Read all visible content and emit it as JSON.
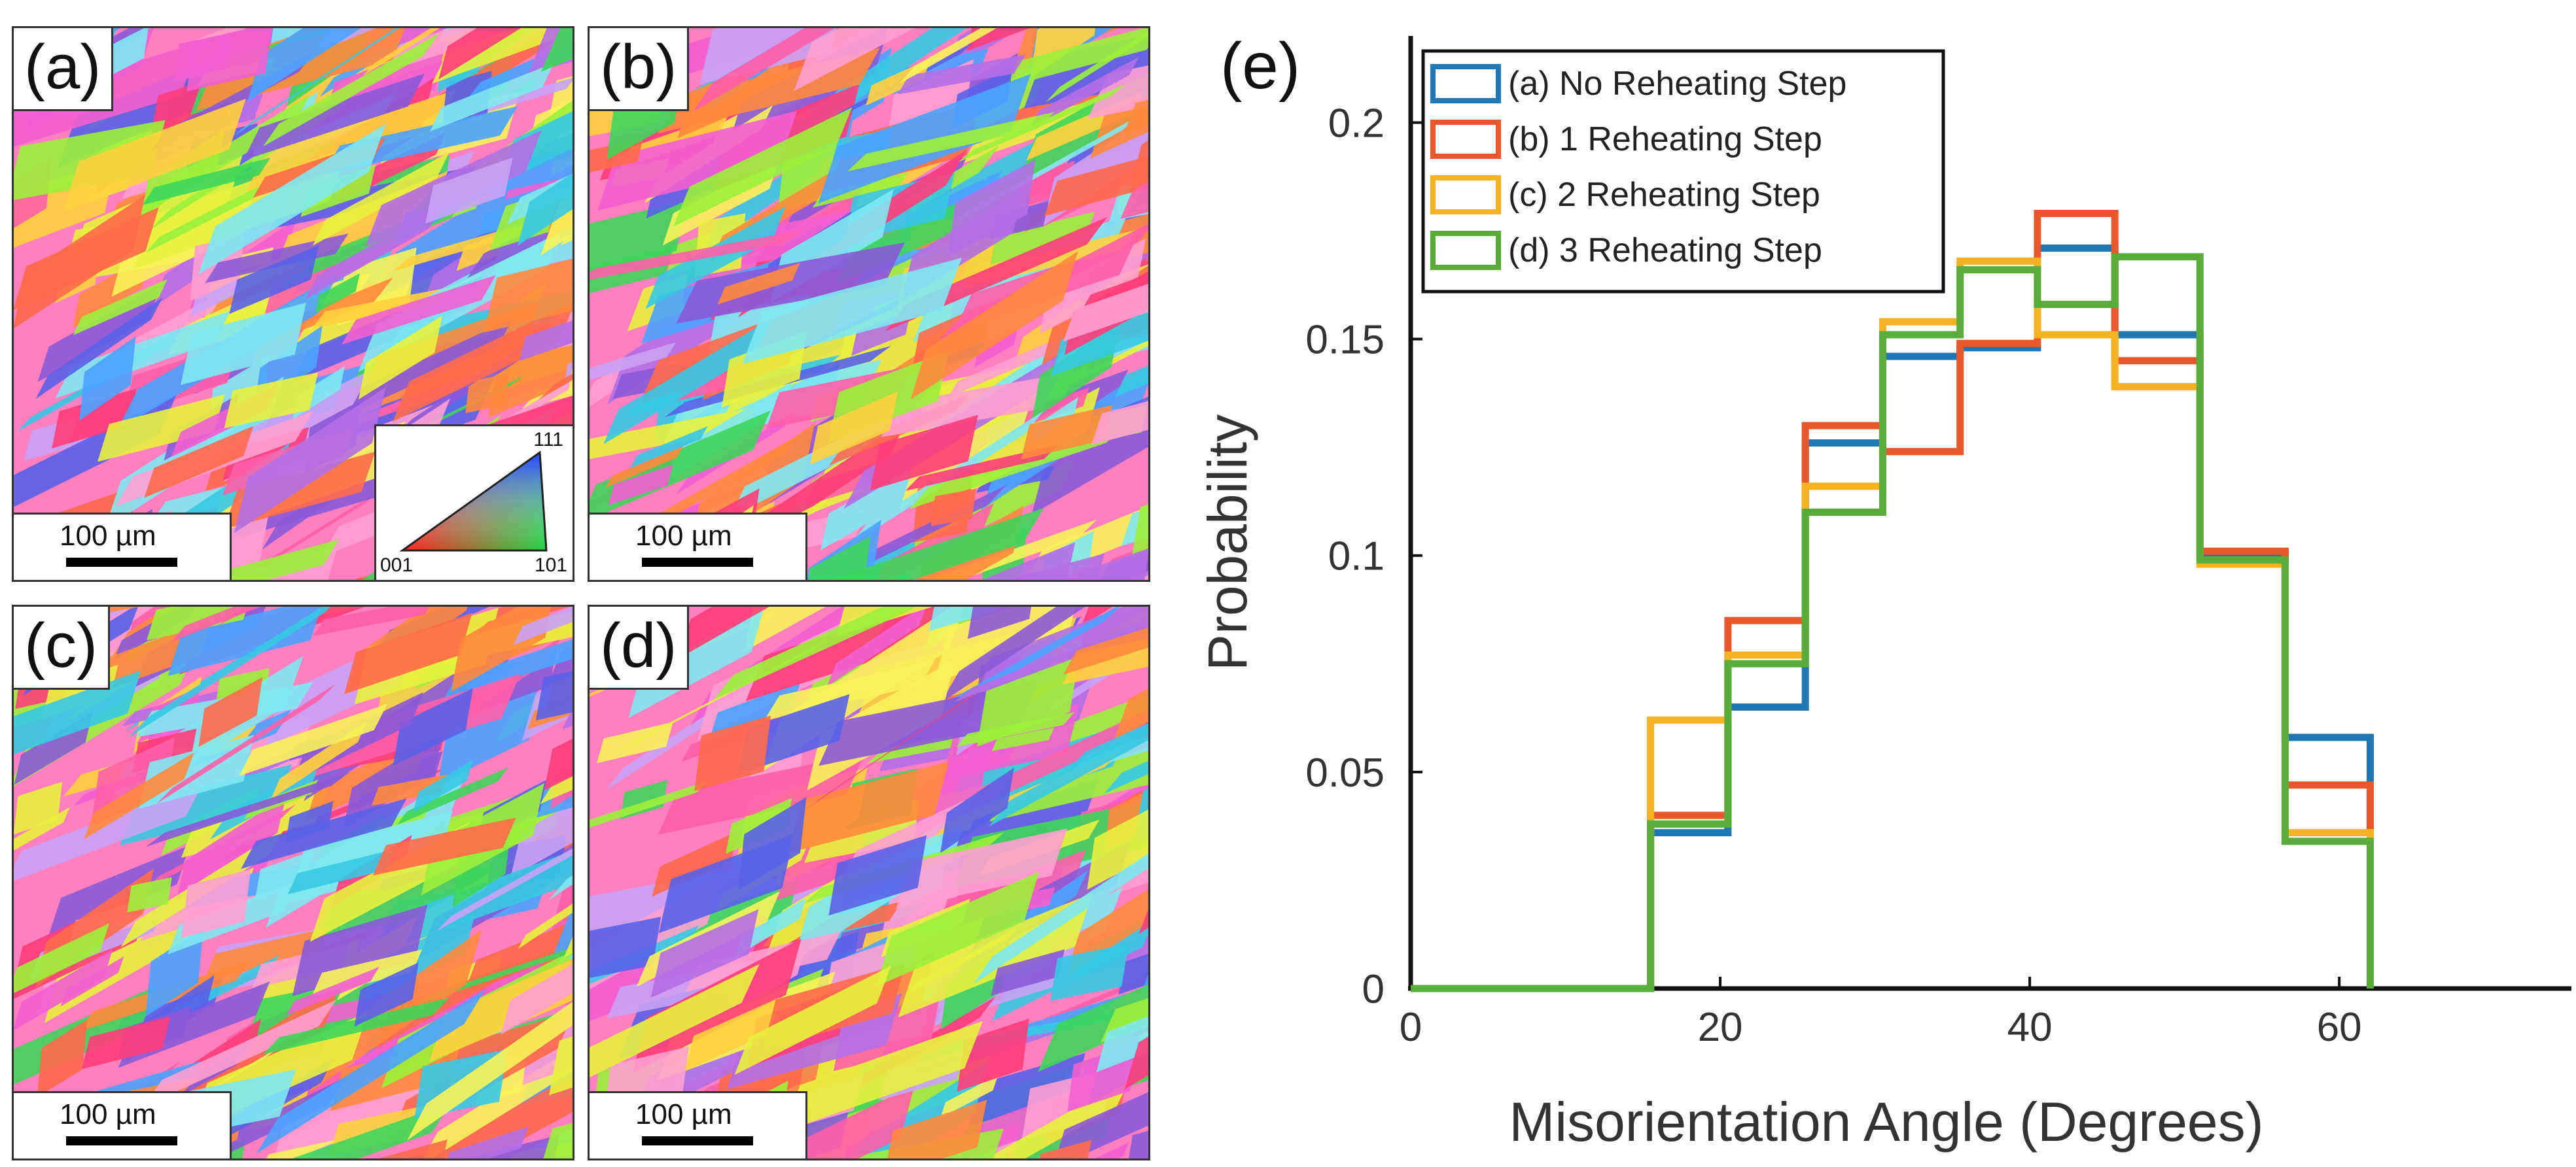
{
  "panels": [
    {
      "label": "(a)",
      "scale_label": "100 µm"
    },
    {
      "label": "(b)",
      "scale_label": "100 µm"
    },
    {
      "label": "(c)",
      "scale_label": "100 µm"
    },
    {
      "label": "(d)",
      "scale_label": "100 µm"
    }
  ],
  "ipf_key": {
    "top": "111",
    "left": "001",
    "right": "101"
  },
  "chart_data": {
    "type": "line",
    "panel_label": "(e)",
    "xlabel": "Misorientation Angle (Degrees)",
    "ylabel": "Probability",
    "xlim": [
      0,
      75
    ],
    "ylim": [
      0,
      0.22
    ],
    "xticks": [
      0,
      20,
      40,
      60
    ],
    "xtick_labels": [
      "0",
      "20",
      "40",
      "60"
    ],
    "yticks": [
      0,
      0.05,
      0.1,
      0.15,
      0.2
    ],
    "ytick_labels": [
      "0",
      "0.05",
      "0.1",
      "0.15",
      "0.2"
    ],
    "grid": false,
    "legend_position": "top-left",
    "bin_edges": [
      0,
      5,
      10,
      15.5,
      20.5,
      25.5,
      30.5,
      35.5,
      40.5,
      45.5,
      51,
      56.5,
      62
    ],
    "series": [
      {
        "name": "(a) No Reheating Step",
        "color": "#1f77b4",
        "values": [
          0,
          0,
          0,
          0.036,
          0.065,
          0.126,
          0.146,
          0.148,
          0.171,
          0.151,
          0.1,
          0.058
        ]
      },
      {
        "name": "(b) 1 Reheating Step",
        "color": "#e8582a",
        "values": [
          0,
          0,
          0,
          0.04,
          0.085,
          0.13,
          0.124,
          0.149,
          0.179,
          0.145,
          0.101,
          0.047
        ]
      },
      {
        "name": "(c) 2 Reheating Step",
        "color": "#f5b324",
        "values": [
          0,
          0,
          0,
          0.062,
          0.077,
          0.116,
          0.154,
          0.168,
          0.151,
          0.139,
          0.098,
          0.036
        ]
      },
      {
        "name": "(d) 3 Reheating Step",
        "color": "#5aac3a",
        "values": [
          0,
          0,
          0,
          0.038,
          0.075,
          0.11,
          0.151,
          0.166,
          0.158,
          0.169,
          0.099,
          0.034
        ]
      }
    ]
  }
}
